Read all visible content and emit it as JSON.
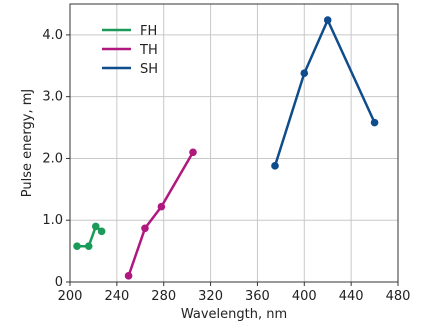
{
  "chart_data": {
    "type": "line",
    "title": "",
    "xlabel": "Wavelength, nm",
    "ylabel": "Pulse energy, mJ",
    "xlim": [
      200,
      480
    ],
    "ylim": [
      0,
      4.5
    ],
    "x_ticks": [
      200,
      240,
      280,
      320,
      360,
      400,
      440,
      480
    ],
    "x_tick_labels": [
      "200",
      "240",
      "280",
      "320",
      "360",
      "400",
      "440",
      "480"
    ],
    "y_ticks": [
      0,
      1,
      2,
      3,
      4
    ],
    "y_tick_labels": [
      "0",
      "1.0",
      "2.0",
      "3.0",
      "4.0"
    ],
    "grid": true,
    "legend_position": "top-left",
    "series": [
      {
        "name": "FH",
        "color": "#1b9a5a",
        "x": [
          206,
          216,
          222,
          227
        ],
        "y": [
          0.58,
          0.58,
          0.9,
          0.82
        ]
      },
      {
        "name": "TH",
        "color": "#b0177f",
        "x": [
          250,
          264,
          278,
          305
        ],
        "y": [
          0.1,
          0.87,
          1.22,
          2.1
        ]
      },
      {
        "name": "SH",
        "color": "#0f4c8c",
        "x": [
          375,
          400,
          420,
          460
        ],
        "y": [
          1.88,
          3.38,
          4.24,
          2.58
        ]
      }
    ]
  }
}
